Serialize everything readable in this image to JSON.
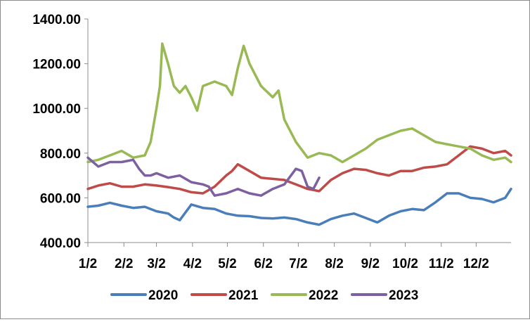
{
  "chart_data": {
    "type": "line",
    "title": "",
    "xlabel": "",
    "ylabel": "",
    "ylim": [
      400,
      1400
    ],
    "y_ticks": [
      "400.00",
      "600.00",
      "800.00",
      "1000.00",
      "1200.00",
      "1400.00"
    ],
    "x_ticks": [
      "1/2",
      "2/2",
      "3/2",
      "4/2",
      "5/2",
      "6/2",
      "7/2",
      "8/2",
      "9/2",
      "10/2",
      "11/2",
      "12/2"
    ],
    "x_axis": "day of year (1 = Jan 2)",
    "x_range": [
      1,
      365
    ],
    "grid": false,
    "legend_position": "bottom",
    "series": [
      {
        "name": "2020",
        "color": "#4a7ebb",
        "x": [
          1,
          10,
          20,
          30,
          40,
          50,
          60,
          70,
          75,
          80,
          90,
          100,
          110,
          120,
          130,
          140,
          150,
          160,
          170,
          180,
          190,
          200,
          210,
          220,
          230,
          240,
          250,
          260,
          270,
          280,
          290,
          300,
          310,
          320,
          330,
          340,
          350,
          360,
          365
        ],
        "y": [
          560,
          565,
          578,
          565,
          555,
          560,
          540,
          530,
          512,
          500,
          570,
          555,
          550,
          530,
          520,
          518,
          510,
          508,
          512,
          505,
          490,
          480,
          505,
          520,
          530,
          510,
          490,
          520,
          540,
          550,
          545,
          580,
          620,
          620,
          600,
          595,
          580,
          600,
          640
        ]
      },
      {
        "name": "2021",
        "color": "#be4b48",
        "x": [
          1,
          10,
          20,
          30,
          40,
          50,
          60,
          70,
          80,
          90,
          100,
          110,
          120,
          125,
          130,
          140,
          150,
          160,
          170,
          180,
          190,
          200,
          210,
          220,
          230,
          240,
          250,
          260,
          270,
          280,
          290,
          300,
          310,
          320,
          330,
          340,
          350,
          360,
          365
        ],
        "y": [
          640,
          655,
          665,
          650,
          650,
          660,
          655,
          648,
          640,
          625,
          620,
          650,
          700,
          720,
          750,
          720,
          690,
          685,
          680,
          660,
          640,
          630,
          680,
          710,
          730,
          725,
          710,
          700,
          720,
          720,
          735,
          740,
          750,
          790,
          830,
          820,
          800,
          810,
          790
        ]
      },
      {
        "name": "2022",
        "color": "#98b954",
        "x": [
          1,
          10,
          20,
          30,
          40,
          50,
          55,
          60,
          63,
          65,
          70,
          75,
          80,
          85,
          90,
          95,
          100,
          110,
          120,
          125,
          130,
          135,
          140,
          150,
          160,
          165,
          170,
          180,
          190,
          200,
          210,
          220,
          230,
          240,
          250,
          260,
          270,
          280,
          290,
          300,
          310,
          320,
          330,
          340,
          350,
          360,
          365
        ],
        "y": [
          760,
          770,
          790,
          810,
          780,
          790,
          850,
          1000,
          1100,
          1290,
          1200,
          1100,
          1070,
          1100,
          1050,
          990,
          1100,
          1120,
          1100,
          1060,
          1180,
          1280,
          1200,
          1100,
          1050,
          1080,
          950,
          850,
          780,
          800,
          790,
          760,
          790,
          820,
          860,
          880,
          900,
          910,
          880,
          850,
          840,
          830,
          820,
          790,
          770,
          780,
          760
        ]
      },
      {
        "name": "2023",
        "color": "#7d60a0",
        "x": [
          1,
          10,
          20,
          30,
          40,
          45,
          50,
          55,
          60,
          70,
          80,
          90,
          100,
          105,
          110,
          120,
          130,
          140,
          150,
          160,
          170,
          180,
          185,
          190,
          195,
          200
        ],
        "y": [
          780,
          740,
          760,
          760,
          770,
          730,
          700,
          700,
          710,
          690,
          700,
          670,
          660,
          650,
          610,
          620,
          640,
          620,
          610,
          640,
          660,
          730,
          720,
          650,
          640,
          690
        ]
      }
    ]
  }
}
